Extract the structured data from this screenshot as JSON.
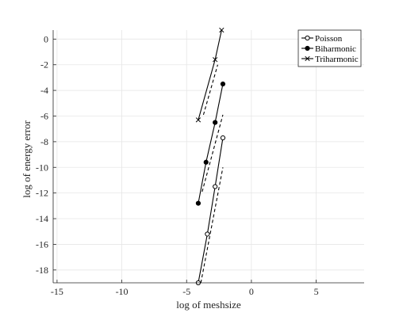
{
  "chart_data": {
    "type": "line",
    "xlabel": "log of meshsize",
    "ylabel": "log of energy error",
    "xlim": [
      -15.3,
      8.7
    ],
    "ylim": [
      -19,
      0.7
    ],
    "xticks": [
      -15,
      -10,
      -5,
      0,
      5
    ],
    "yticks": [
      0,
      -2,
      -4,
      -6,
      -8,
      -10,
      -12,
      -14,
      -16,
      -18
    ],
    "grid": true,
    "legend_position": "top-right",
    "series": [
      {
        "name": "Poisson",
        "marker": "circle-open",
        "style": "solid",
        "x": [
          -4.1,
          -3.4,
          -2.8,
          -2.2
        ],
        "y": [
          -19.0,
          -15.2,
          -11.5,
          -7.7
        ]
      },
      {
        "name": "Biharmonic",
        "marker": "circle-filled",
        "style": "solid",
        "x": [
          -4.1,
          -3.5,
          -2.8,
          -2.2
        ],
        "y": [
          -12.8,
          -9.6,
          -6.5,
          -3.5
        ]
      },
      {
        "name": "Triharmonic",
        "marker": "x",
        "style": "solid",
        "x": [
          -4.1,
          -2.8,
          -2.3
        ],
        "y": [
          -6.3,
          -1.6,
          0.7
        ]
      },
      {
        "name": "",
        "marker": "none",
        "style": "dashed",
        "x": [
          -3.9,
          -2.2
        ],
        "y": [
          -19.0,
          -10.0
        ]
      },
      {
        "name": "",
        "marker": "none",
        "style": "dashed",
        "x": [
          -3.8,
          -2.2
        ],
        "y": [
          -11.9,
          -5.9
        ]
      },
      {
        "name": "",
        "marker": "none",
        "style": "dashed",
        "x": [
          -3.7,
          -2.6
        ],
        "y": [
          -5.9,
          -2.0
        ]
      }
    ]
  }
}
